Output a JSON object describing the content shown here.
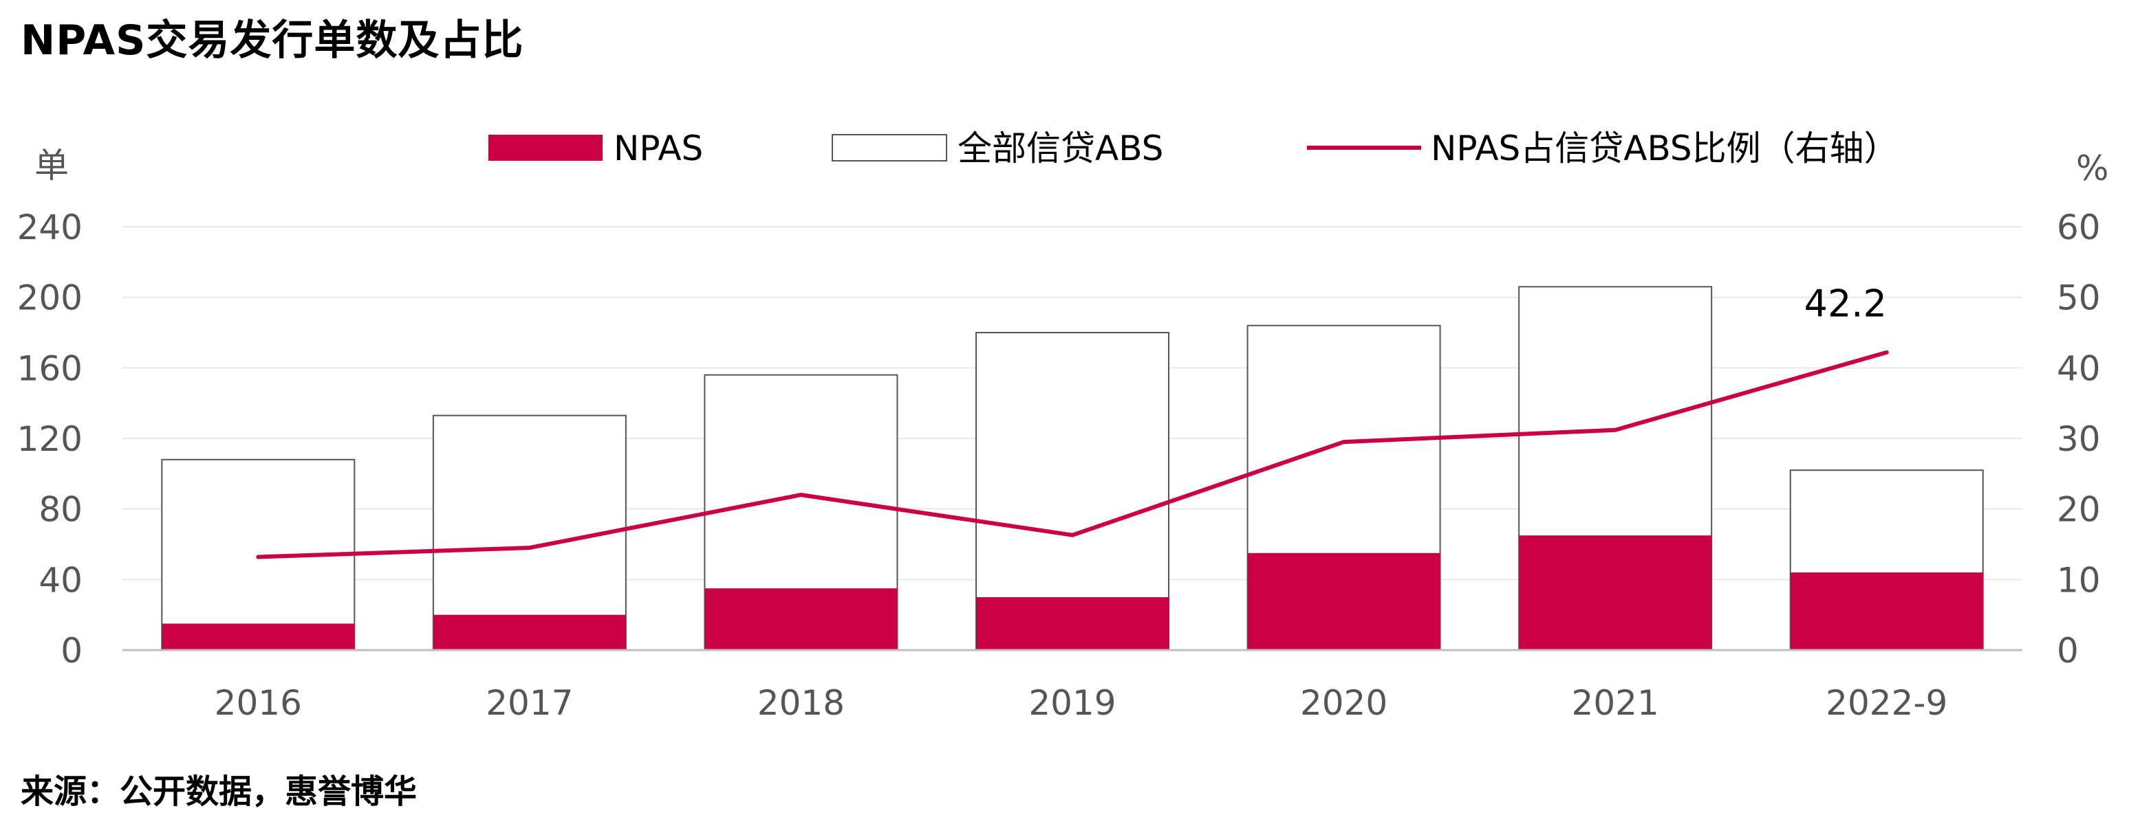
{
  "title": "NPAS交易发行单数及占比",
  "source": "来源：公开数据，惠誉博华",
  "colors": {
    "npas": "#cc0044",
    "total_stroke": "#555555",
    "line": "#cc0044",
    "grid": "#e8e8e8"
  },
  "chart_data": {
    "type": "bar+line",
    "categories": [
      "2016",
      "2017",
      "2018",
      "2019",
      "2020",
      "2021",
      "2022-9"
    ],
    "series": [
      {
        "name": "NPAS",
        "type": "bar",
        "axis": "left",
        "values": [
          15,
          20,
          35,
          30,
          55,
          65,
          44
        ]
      },
      {
        "name": "全部信贷ABS",
        "type": "bar",
        "axis": "left",
        "values": [
          108,
          133,
          156,
          180,
          184,
          206,
          102
        ]
      },
      {
        "name": "NPAS占信贷ABS比例（右轴）",
        "type": "line",
        "axis": "right",
        "values": [
          13.2,
          14.5,
          22.0,
          16.3,
          29.5,
          31.2,
          42.2
        ]
      }
    ],
    "y_left": {
      "label": "单",
      "min": 0,
      "max": 240,
      "ticks": [
        0,
        40,
        80,
        120,
        160,
        200,
        240
      ]
    },
    "y_right": {
      "label": "%",
      "min": 0,
      "max": 60,
      "ticks": [
        0,
        10,
        20,
        30,
        40,
        50,
        60
      ]
    },
    "annotations": [
      {
        "category": "2022-9",
        "text": "42.2"
      }
    ],
    "legend_position": "top",
    "grid": true
  }
}
